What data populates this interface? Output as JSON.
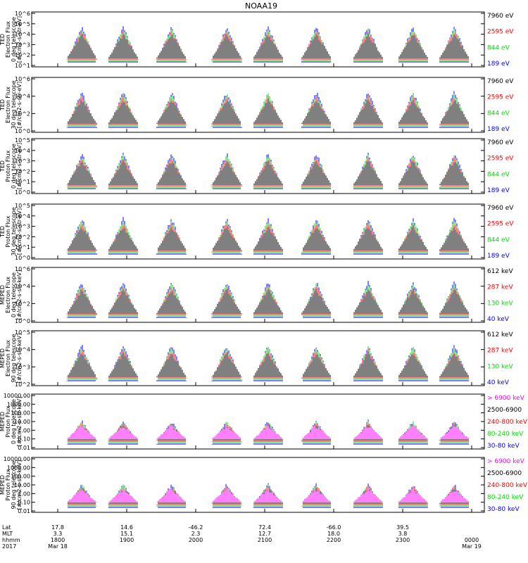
{
  "title": "NOAA19",
  "colors": {
    "blue": "#0000ff",
    "red": "#ff0000",
    "green": "#00dd00",
    "black": "#000000",
    "magenta": "#ff00ff"
  },
  "chart_data": {
    "type": "line",
    "title": "NOAA19",
    "x_range": [
      "2017-03-18 18:00",
      "2017-03-19 00:00"
    ],
    "time_ticks": [
      "1800",
      "1900",
      "2000",
      "2100",
      "2200",
      "2300",
      "0000"
    ],
    "footer": {
      "row_labels": [
        "Lat",
        "MLT",
        "hhmm",
        "2017"
      ],
      "lat": [
        "17.8",
        "14.6",
        "-46.2",
        "72.4",
        "-66.0",
        "39.5"
      ],
      "mlt": [
        "3.3",
        "15.1",
        "2.3",
        "12.7",
        "18.0",
        "3.8"
      ],
      "hhmm": [
        "1800",
        "1900",
        "2000",
        "2100",
        "2200",
        "2300",
        "0000"
      ],
      "dates": [
        "Mar 18",
        "Mar 19"
      ]
    },
    "panels": [
      {
        "id": "p1",
        "ylabel": [
          "TED",
          "Electron Flux",
          "0 deg telescope",
          "[#/cm2-s-str-eV]"
        ],
        "ytype": "log",
        "yticks": [
          "10^1",
          "10^2",
          "10^3",
          "10^4",
          "10^5",
          "10^6"
        ],
        "legend": [
          {
            "label": "7960 eV",
            "color": "black"
          },
          {
            "label": "2595 eV",
            "color": "red"
          },
          {
            "label": "844 eV",
            "color": "green"
          },
          {
            "label": "189 eV",
            "color": "blue"
          }
        ]
      },
      {
        "id": "p2",
        "ylabel": [
          "TED",
          "Electron Flux",
          "30 deg telescope",
          "[#/cm2-s-str-eV]"
        ],
        "ytype": "log",
        "yticks": [
          "10^0",
          "10^2",
          "10^4",
          "10^6"
        ],
        "legend": [
          {
            "label": "7960 eV",
            "color": "black"
          },
          {
            "label": "2595 eV",
            "color": "red"
          },
          {
            "label": "844 eV",
            "color": "green"
          },
          {
            "label": "189 eV",
            "color": "blue"
          }
        ]
      },
      {
        "id": "p3",
        "ylabel": [
          "TED",
          "Proton Flux",
          "0 deg telescope",
          "[#/cm2-s-str-eV]"
        ],
        "ytype": "log",
        "yticks": [
          "10^0",
          "10^1",
          "10^2",
          "10^3",
          "10^4",
          "10^5"
        ],
        "legend": [
          {
            "label": "7960 eV",
            "color": "black"
          },
          {
            "label": "2595 eV",
            "color": "red"
          },
          {
            "label": "844 eV",
            "color": "green"
          },
          {
            "label": "189 eV",
            "color": "blue"
          }
        ]
      },
      {
        "id": "p4",
        "ylabel": [
          "TED",
          "Proton Flux",
          "30 deg telescope",
          "[#/cm2-s-str-eV]"
        ],
        "ytype": "log",
        "yticks": [
          "10^0",
          "10^1",
          "10^2",
          "10^3",
          "10^4",
          "10^5"
        ],
        "legend": [
          {
            "label": "7960 eV",
            "color": "black"
          },
          {
            "label": "2595 eV",
            "color": "red"
          },
          {
            "label": "844 eV",
            "color": "green"
          },
          {
            "label": "189 eV",
            "color": "blue"
          }
        ]
      },
      {
        "id": "p5",
        "ylabel": [
          "MEPED",
          "Electron Flux",
          "0 deg telescope",
          "[#/cm2-s-str-keV]"
        ],
        "ytype": "log",
        "yticks": [
          "10^0",
          "10^2",
          "10^4",
          "10^6"
        ],
        "legend": [
          {
            "label": "612 keV",
            "color": "black"
          },
          {
            "label": "287 keV",
            "color": "red"
          },
          {
            "label": "130 keV",
            "color": "green"
          },
          {
            "label": "40 keV",
            "color": "blue"
          }
        ]
      },
      {
        "id": "p6",
        "ylabel": [
          "MEPED",
          "Electron Flux",
          "90 deg telescope",
          "[#/cm2-s-str-keV]"
        ],
        "ytype": "log",
        "yticks": [
          "10^2",
          "10^3",
          "10^4",
          "10^5"
        ],
        "legend": [
          {
            "label": "612 keV",
            "color": "black"
          },
          {
            "label": "287 keV",
            "color": "red"
          },
          {
            "label": "130 keV",
            "color": "green"
          },
          {
            "label": "40 keV",
            "color": "blue"
          }
        ]
      },
      {
        "id": "p7",
        "ylabel": [
          "MEPED",
          "Proton Flux",
          "0 deg telescope",
          "[#/cm2-s-str-keV]"
        ],
        "ytype": "log",
        "yticks": [
          "0.01",
          "0.10",
          "1.00",
          "10.00",
          "100.00",
          "1000.00",
          "10000.00"
        ],
        "legend": [
          {
            "label": "> 6900 keV",
            "color": "magenta"
          },
          {
            "label": "2500-6900",
            "color": "black"
          },
          {
            "label": "240-800 keV",
            "color": "red"
          },
          {
            "label": "80-240 keV",
            "color": "green"
          },
          {
            "label": "30-80 keV",
            "color": "blue"
          }
        ]
      },
      {
        "id": "p8",
        "ylabel": [
          "MEPED",
          "Proton Flux",
          "90 deg telescope",
          "[#/cm2-s-str-keV]"
        ],
        "ytype": "log",
        "yticks": [
          "0.01",
          "0.10",
          "1.00",
          "10.00",
          "100.00",
          "1000.00",
          "10000.00"
        ],
        "legend": [
          {
            "label": "> 6900 keV",
            "color": "magenta"
          },
          {
            "label": "2500-6900",
            "color": "black"
          },
          {
            "label": "240-800 keV",
            "color": "red"
          },
          {
            "label": "80-240 keV",
            "color": "green"
          },
          {
            "label": "30-80 keV",
            "color": "blue"
          }
        ]
      }
    ]
  }
}
